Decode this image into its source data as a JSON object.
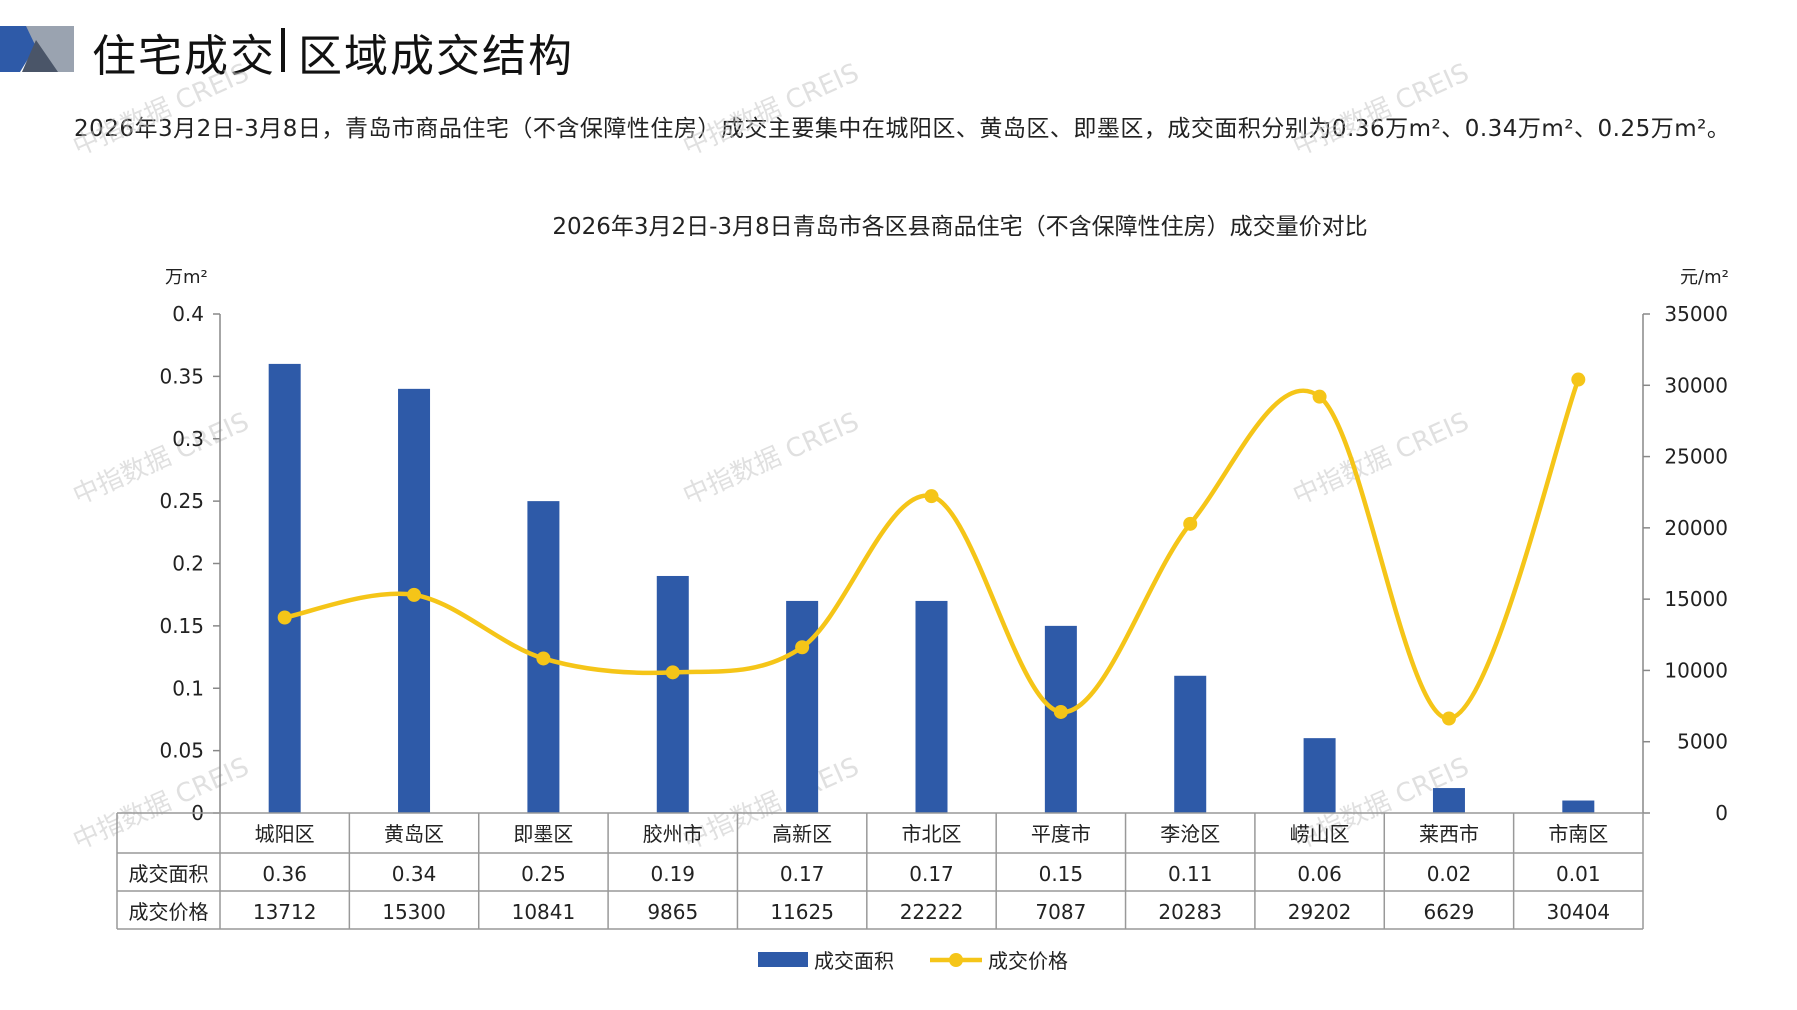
{
  "page": {
    "title": "住宅成交",
    "subtitle": "区域成交结构",
    "summary": "2026年3月2日-3月8日，青岛市商品住宅（不含保障性住房）成交主要集中在城阳区、黄岛区、即墨区，成交面积分别为0.36万m²、0.34万m²、0.25万m²。",
    "watermark": "中指数据 CREIS"
  },
  "chart_data": {
    "type": "bar+line",
    "title": "2026年3月2日-3月8日青岛市各区县商品住宅（不含保障性住房）成交量价对比",
    "categories": [
      "城阳区",
      "黄岛区",
      "即墨区",
      "胶州市",
      "高新区",
      "市北区",
      "平度市",
      "李沧区",
      "崂山区",
      "莱西市",
      "市南区"
    ],
    "series": [
      {
        "name": "成交面积",
        "type": "bar",
        "axis": "left",
        "color": "#2e5aa8",
        "values": [
          0.36,
          0.34,
          0.25,
          0.19,
          0.17,
          0.17,
          0.15,
          0.11,
          0.06,
          0.02,
          0.01
        ]
      },
      {
        "name": "成交价格",
        "type": "line",
        "axis": "right",
        "color": "#f5c518",
        "values": [
          13712,
          15300,
          10841,
          9865,
          11625,
          22222,
          7087,
          20283,
          29202,
          6629,
          30404
        ]
      }
    ],
    "left_axis": {
      "unit": "万m²",
      "min": 0,
      "max": 0.4,
      "ticks": [
        0,
        0.05,
        0.1,
        0.15,
        0.2,
        0.25,
        0.3,
        0.35,
        0.4
      ],
      "tick_labels": [
        "0",
        "0.05",
        "0.1",
        "0.15",
        "0.2",
        "0.25",
        "0.3",
        "0.35",
        "0.4"
      ]
    },
    "right_axis": {
      "unit": "元/m²",
      "min": 0,
      "max": 35000,
      "ticks": [
        0,
        5000,
        10000,
        15000,
        20000,
        25000,
        30000,
        35000
      ],
      "tick_labels": [
        "0",
        "5000",
        "10000",
        "15000",
        "20000",
        "25000",
        "30000",
        "35000"
      ]
    },
    "table": {
      "row_labels": [
        "成交面积",
        "成交价格"
      ],
      "rows": [
        [
          "0.36",
          "0.34",
          "0.25",
          "0.19",
          "0.17",
          "0.17",
          "0.15",
          "0.11",
          "0.06",
          "0.02",
          "0.01"
        ],
        [
          "13712",
          "15300",
          "10841",
          "9865",
          "11625",
          "22222",
          "7087",
          "20283",
          "29202",
          "6629",
          "30404"
        ]
      ]
    },
    "legend": {
      "position": "bottom",
      "items": [
        "成交面积",
        "成交价格"
      ]
    },
    "grid": false
  }
}
